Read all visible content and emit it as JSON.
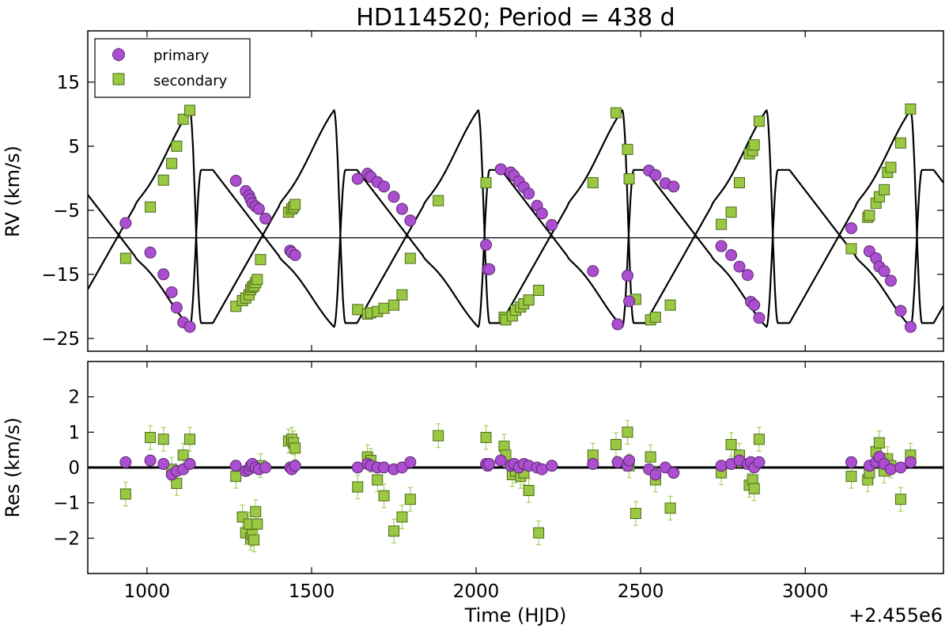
{
  "chart_data": [
    {
      "panel": "top",
      "type": "scatter",
      "title": "HD114520; Period = 438 d",
      "xlabel": "",
      "ylabel": "RV (km/s)",
      "xlim": [
        820,
        3420
      ],
      "ylim": [
        -27,
        23
      ],
      "xticks": [
        1000,
        1500,
        2000,
        2500,
        3000
      ],
      "yticks": [
        15,
        5,
        -5,
        -15,
        -25
      ],
      "ytick_labels": [
        "15",
        "5",
        "−5",
        "−15",
        "−25"
      ],
      "grid": false,
      "legend": {
        "position": "top-left",
        "entries": [
          {
            "label": "primary",
            "marker": "circle",
            "color": "#ab4ed0"
          },
          {
            "label": "secondary",
            "marker": "square",
            "color": "#9bc843"
          }
        ]
      },
      "systemic_velocity": -9.3,
      "model": {
        "period": 438,
        "t_min_primary": [
          1130,
          1568,
          2006,
          2444,
          2882,
          3320
        ],
        "primary_min": -23.2,
        "primary_max": 1.3,
        "secondary_min": -22.6,
        "secondary_max": 10.6
      },
      "series": [
        {
          "name": "primary",
          "x": [
            935,
            1010,
            1050,
            1075,
            1090,
            1110,
            1130,
            1270,
            1300,
            1310,
            1315,
            1320,
            1330,
            1340,
            1360,
            1435,
            1440,
            1450,
            1640,
            1670,
            1680,
            1700,
            1720,
            1750,
            1775,
            1800,
            2030,
            2035,
            2040,
            2075,
            2105,
            2115,
            2130,
            2145,
            2160,
            2185,
            2200,
            2230,
            2355,
            2430,
            2460,
            2465,
            2525,
            2545,
            2575,
            2600,
            2745,
            2775,
            2800,
            2825,
            2835,
            2845,
            2860,
            3140,
            3195,
            3215,
            3225,
            3240,
            3260,
            3290,
            3320
          ],
          "y": [
            -7.0,
            -11.6,
            -15.0,
            -17.8,
            -20.2,
            -22.5,
            -23.2,
            -0.4,
            -2.0,
            -2.7,
            -3.3,
            -3.9,
            -4.4,
            -4.8,
            -6.3,
            -11.3,
            -11.6,
            -12.0,
            -0.1,
            0.7,
            0.2,
            -0.6,
            -1.3,
            -2.9,
            -4.8,
            -6.6,
            -10.4,
            -14.2,
            -14.2,
            1.4,
            0.9,
            0.4,
            -0.5,
            -1.4,
            -2.4,
            -4.3,
            -5.5,
            -7.3,
            -14.5,
            -22.8,
            -15.2,
            -19.2,
            1.2,
            0.5,
            -0.8,
            -1.3,
            -10.6,
            -12.0,
            -13.8,
            -15.1,
            -19.3,
            -19.8,
            -21.8,
            -7.8,
            -11.4,
            -12.5,
            -13.8,
            -14.5,
            -16.0,
            -20.7,
            -23.2
          ]
        },
        {
          "name": "secondary",
          "x": [
            935,
            1010,
            1050,
            1075,
            1090,
            1110,
            1130,
            1270,
            1290,
            1300,
            1310,
            1315,
            1320,
            1325,
            1330,
            1335,
            1345,
            1430,
            1440,
            1445,
            1450,
            1640,
            1670,
            1680,
            1700,
            1720,
            1750,
            1775,
            1800,
            1885,
            2030,
            2085,
            2090,
            2110,
            2120,
            2135,
            2145,
            2160,
            2190,
            2355,
            2425,
            2460,
            2465,
            2485,
            2530,
            2545,
            2590,
            2745,
            2775,
            2800,
            2830,
            2840,
            2845,
            2860,
            3140,
            3190,
            3195,
            3215,
            3225,
            3240,
            3250,
            3260,
            3290,
            3320
          ],
          "y": [
            -12.5,
            -4.5,
            -0.3,
            2.3,
            5.0,
            9.2,
            10.6,
            -20.0,
            -19.1,
            -18.7,
            -18.2,
            -17.4,
            -17.0,
            -16.8,
            -16.3,
            -15.8,
            -12.7,
            -5.3,
            -4.8,
            -4.5,
            -4.1,
            -20.5,
            -21.2,
            -21.0,
            -20.8,
            -20.3,
            -19.8,
            -18.2,
            -12.5,
            -3.5,
            -0.7,
            -21.7,
            -22.1,
            -21.5,
            -20.6,
            -20.1,
            -19.6,
            -19.0,
            -17.5,
            -0.7,
            10.2,
            4.5,
            -0.1,
            -18.9,
            -22.1,
            -21.7,
            -19.8,
            -7.2,
            -5.3,
            -0.7,
            3.8,
            4.3,
            5.2,
            8.9,
            -11.0,
            -6.1,
            -5.8,
            -3.9,
            -2.9,
            -1.8,
            0.9,
            1.7,
            5.5,
            10.8
          ]
        }
      ]
    },
    {
      "panel": "bottom",
      "type": "scatter",
      "title": "",
      "xlabel": "Time (HJD)",
      "x_offset_label": "+2.455e6",
      "ylabel": "Res (km/s)",
      "xlim": [
        820,
        3420
      ],
      "ylim": [
        -3,
        3
      ],
      "xticks": [
        1000,
        1500,
        2000,
        2500,
        3000
      ],
      "xtick_labels": [
        "1000",
        "1500",
        "2000",
        "2500",
        "3000"
      ],
      "yticks": [
        2,
        1,
        0,
        -1,
        -2
      ],
      "ytick_labels": [
        "2",
        "1",
        "0",
        "−1",
        "−2"
      ],
      "grid": false,
      "zero_line": 0,
      "series": [
        {
          "name": "primary",
          "x": [
            935,
            1010,
            1050,
            1075,
            1090,
            1110,
            1130,
            1270,
            1300,
            1310,
            1315,
            1320,
            1330,
            1340,
            1360,
            1435,
            1440,
            1450,
            1640,
            1670,
            1680,
            1700,
            1720,
            1750,
            1775,
            1800,
            2030,
            2035,
            2040,
            2075,
            2105,
            2115,
            2130,
            2145,
            2160,
            2185,
            2200,
            2230,
            2355,
            2430,
            2460,
            2465,
            2525,
            2545,
            2575,
            2600,
            2745,
            2775,
            2800,
            2825,
            2835,
            2845,
            2860,
            3140,
            3195,
            3215,
            3225,
            3240,
            3260,
            3290,
            3320
          ],
          "y": [
            0.15,
            0.2,
            0.1,
            -0.2,
            -0.1,
            -0.05,
            0.1,
            0.05,
            -0.1,
            -0.05,
            0.05,
            0.1,
            0.0,
            -0.05,
            0.0,
            0.0,
            -0.05,
            0.05,
            0.0,
            0.1,
            0.05,
            0.0,
            0.0,
            -0.05,
            0.0,
            0.15,
            0.1,
            0.05,
            0.1,
            0.2,
            0.05,
            0.1,
            0.0,
            0.1,
            0.05,
            0.0,
            -0.05,
            0.05,
            0.1,
            0.15,
            0.05,
            0.2,
            -0.05,
            -0.2,
            0.0,
            -0.15,
            0.05,
            0.1,
            0.2,
            0.1,
            0.15,
            0.0,
            0.15,
            0.15,
            0.05,
            0.15,
            0.3,
            0.1,
            -0.05,
            0.0,
            0.15
          ]
        },
        {
          "name": "secondary",
          "x": [
            935,
            1010,
            1050,
            1075,
            1090,
            1110,
            1130,
            1270,
            1290,
            1300,
            1310,
            1315,
            1320,
            1325,
            1330,
            1335,
            1345,
            1430,
            1440,
            1445,
            1450,
            1640,
            1670,
            1680,
            1700,
            1720,
            1750,
            1775,
            1800,
            1885,
            2030,
            2085,
            2090,
            2110,
            2120,
            2135,
            2145,
            2160,
            2190,
            2355,
            2425,
            2460,
            2465,
            2485,
            2530,
            2545,
            2590,
            2745,
            2775,
            2800,
            2830,
            2840,
            2845,
            2860,
            3140,
            3190,
            3195,
            3215,
            3225,
            3240,
            3250,
            3260,
            3290,
            3320
          ],
          "y": [
            -0.75,
            0.85,
            0.8,
            -0.05,
            -0.45,
            0.35,
            0.8,
            -0.25,
            -1.4,
            -1.85,
            -1.6,
            -2.0,
            -1.9,
            -2.05,
            -1.25,
            -1.6,
            0.05,
            0.75,
            0.8,
            0.7,
            0.55,
            -0.55,
            0.3,
            0.2,
            -0.35,
            -0.8,
            -1.8,
            -1.4,
            -0.9,
            0.9,
            0.85,
            0.6,
            0.35,
            -0.2,
            -0.1,
            -0.25,
            -0.15,
            -0.65,
            -1.85,
            0.35,
            0.65,
            1.0,
            0.05,
            -1.3,
            0.3,
            -0.35,
            -1.15,
            -0.15,
            0.65,
            0.35,
            -0.5,
            -0.35,
            -0.6,
            0.8,
            -0.25,
            -0.35,
            -0.15,
            0.45,
            0.7,
            -0.1,
            0.25,
            0.05,
            -0.9,
            0.35
          ]
        }
      ]
    }
  ]
}
